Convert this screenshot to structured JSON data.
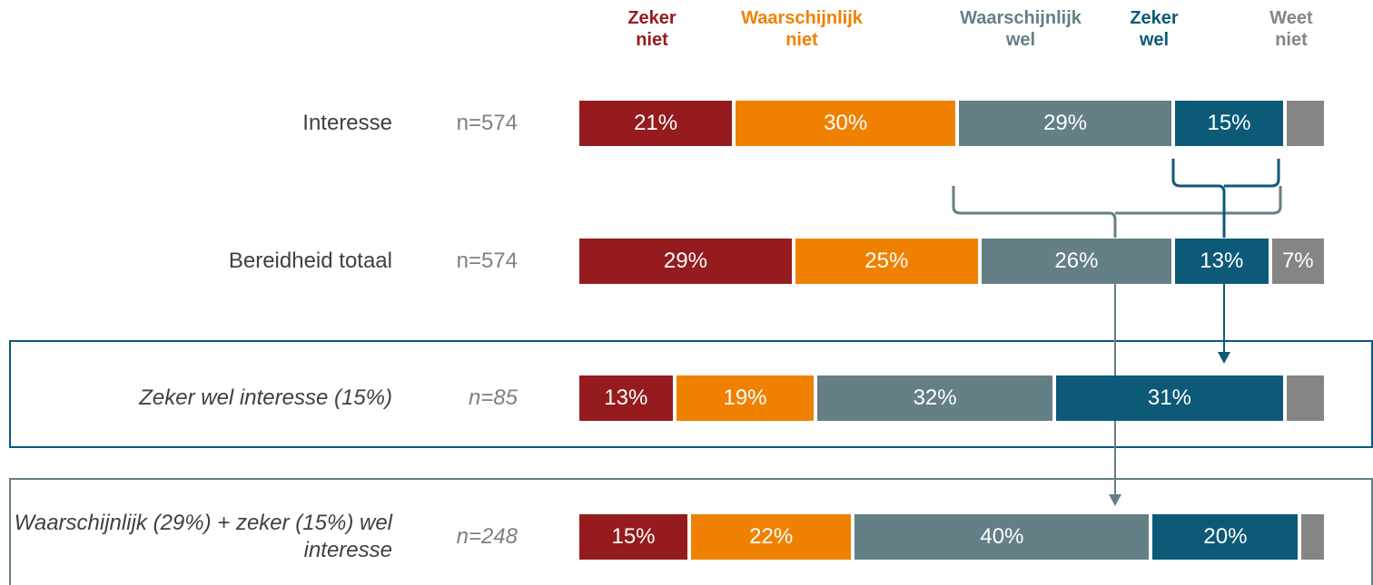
{
  "chart_data": {
    "type": "bar",
    "orientation": "horizontal",
    "stacked": true,
    "categories": [
      "Interesse",
      "Bereidheid totaal",
      "Zeker wel interesse (15%)",
      "Waarschijnlijk (29%) + zeker (15%) wel interesse"
    ],
    "sample_sizes": [
      "n=574",
      "n=574",
      "n=85",
      "n=248"
    ],
    "xlim": [
      0,
      100
    ],
    "series": [
      {
        "name": "Zeker niet",
        "color": "#951b1e",
        "values": [
          21,
          29,
          13,
          15
        ],
        "value_labels": [
          "21%",
          "29%",
          "13%",
          "15%"
        ]
      },
      {
        "name": "Waarschijnlijk niet",
        "color": "#f08100",
        "values": [
          30,
          25,
          19,
          22
        ],
        "value_labels": [
          "30%",
          "25%",
          "19%",
          "22%"
        ]
      },
      {
        "name": "Waarschijnlijk wel",
        "color": "#647f86",
        "values": [
          29,
          26,
          32,
          40
        ],
        "value_labels": [
          "29%",
          "26%",
          "32%",
          "40%"
        ]
      },
      {
        "name": "Zeker wel",
        "color": "#0c5a78",
        "values": [
          15,
          13,
          31,
          20
        ],
        "value_labels": [
          "15%",
          "13%",
          "31%",
          "20%"
        ]
      },
      {
        "name": "Weet niet",
        "color": "#858585",
        "values": [
          5,
          7,
          5,
          3
        ],
        "value_labels": [
          null,
          "7%",
          null,
          null
        ]
      }
    ]
  }
}
